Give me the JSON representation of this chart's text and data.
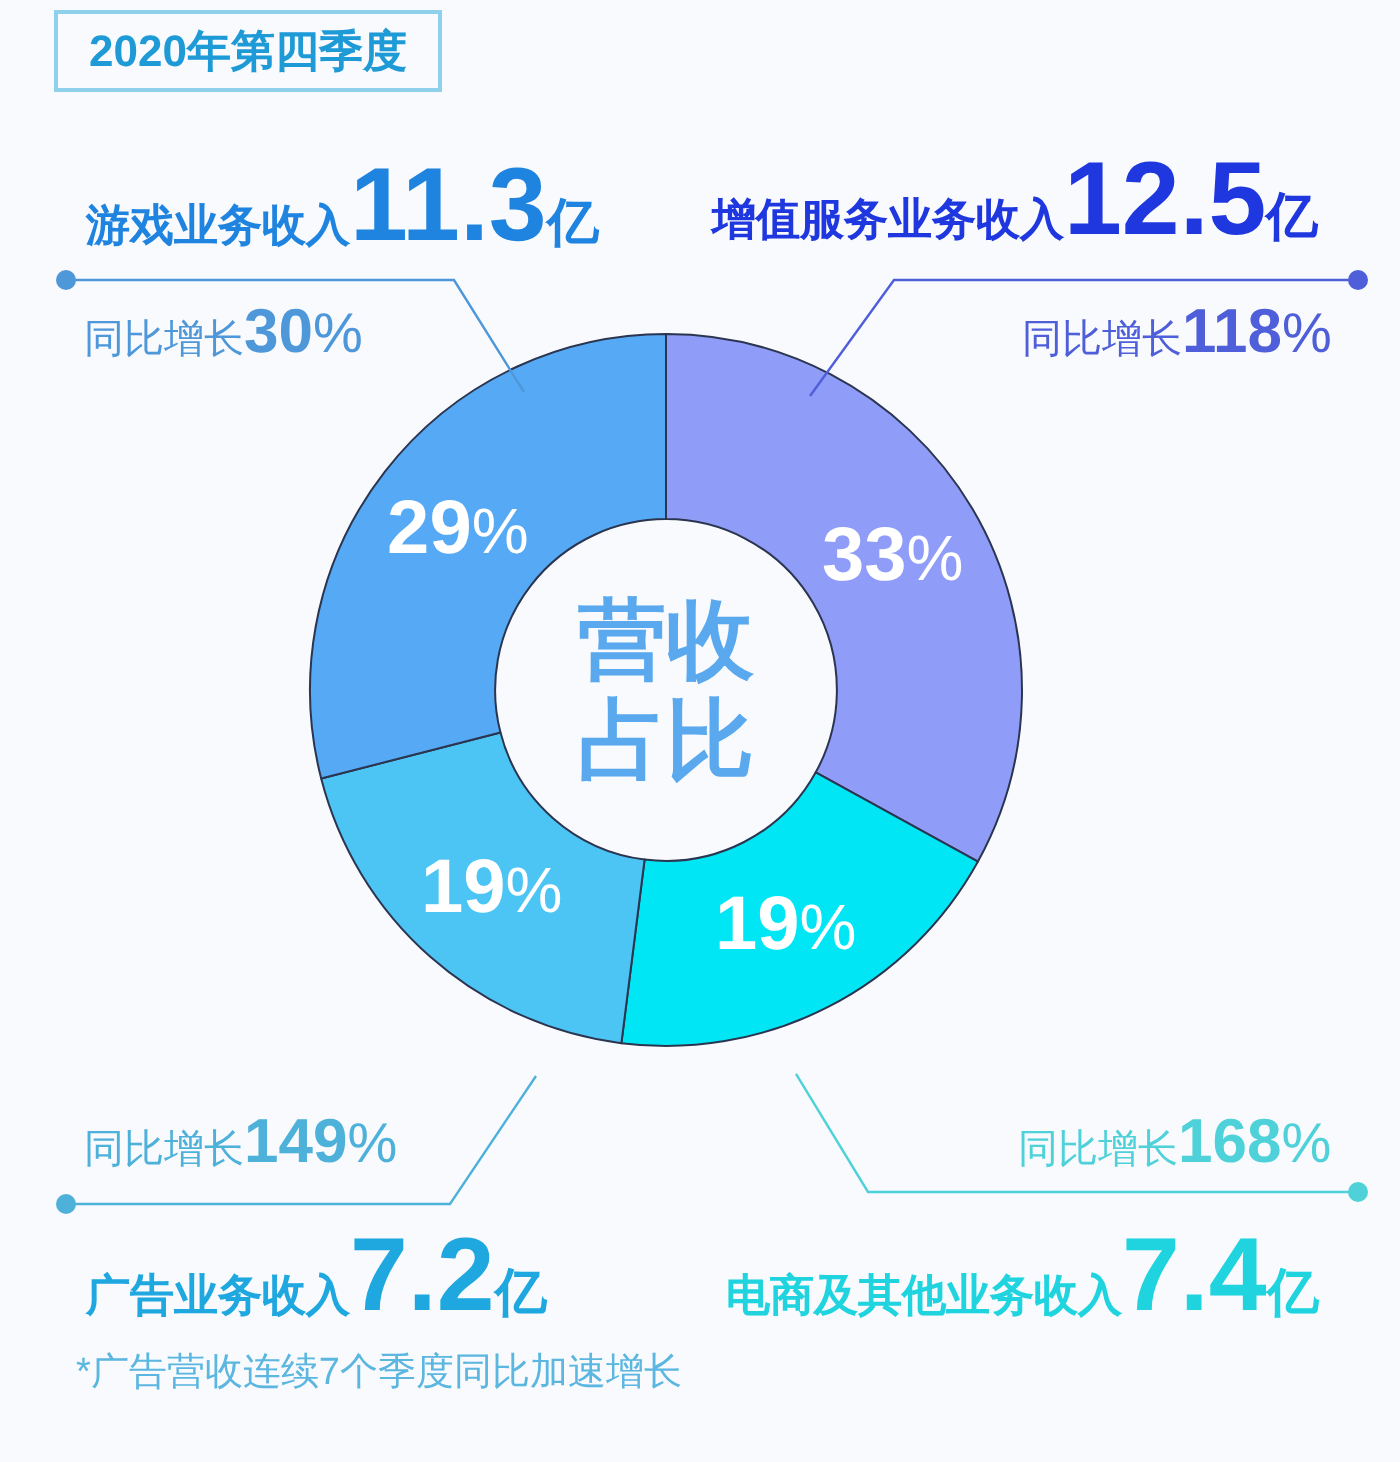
{
  "chart_data": {
    "type": "donut",
    "title": "2020年第四季度",
    "categories": [
      "增值服务业务收入",
      "电商及其他业务收入",
      "广告业务收入",
      "游戏业务收入"
    ],
    "values": [
      33,
      19,
      19,
      29
    ],
    "colors": [
      "#8f9cf8",
      "#00e6f4",
      "#4cc5f5",
      "#55a9f5"
    ],
    "value_labels": [
      "33%",
      "19%",
      "19%",
      "29%"
    ],
    "annotations": [
      "12.5亿",
      "同比增长118%",
      "7.4亿",
      "同比增长168%",
      "7.2亿",
      "同比增长149%",
      "11.3亿",
      "同比增长30%",
      "营收",
      "占比",
      "*广告营收连续7个季度同比加速增长"
    ]
  }
}
